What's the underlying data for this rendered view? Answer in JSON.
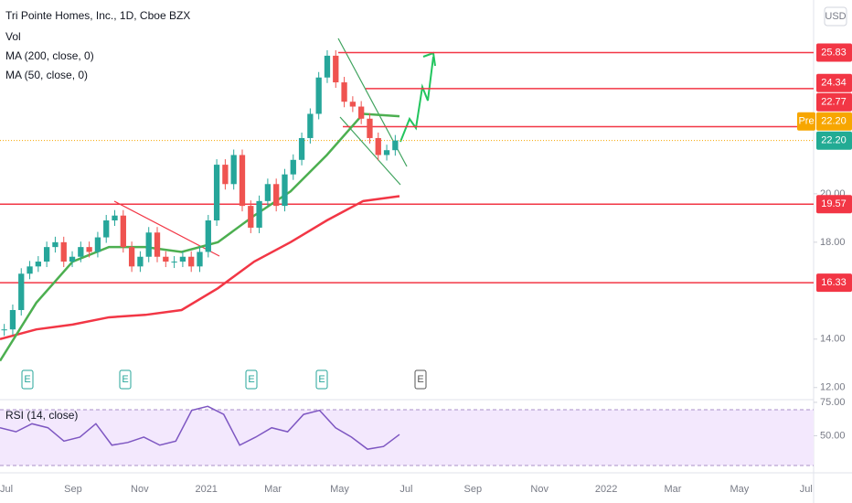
{
  "header": {
    "title": "Tri Pointe Homes, Inc., 1D, Cboe BZX",
    "currency": "USD"
  },
  "chart_data": [
    {
      "type": "candlestick",
      "volume_label": "Vol",
      "closes": [
        14.4,
        15.2,
        16.7,
        17.0,
        17.2,
        17.8,
        18.0,
        17.2,
        17.4,
        17.8,
        17.6,
        18.2,
        18.9,
        19.1,
        17.8,
        17.0,
        17.4,
        18.4,
        17.4,
        17.2,
        17.2,
        17.4,
        17.0,
        17.6,
        18.9,
        21.2,
        20.4,
        21.6,
        19.5,
        18.6,
        19.7,
        20.4,
        19.5,
        20.8,
        21.4,
        22.3,
        23.3,
        24.8,
        25.7,
        24.6,
        23.8,
        23.6,
        23.1,
        22.3,
        21.6,
        21.8,
        22.2
      ],
      "ma": [
        {
          "name": "MA (200, close, 0)",
          "color": "#f23645",
          "values": [
            14.0,
            14.4,
            14.6,
            14.9,
            15.0,
            15.2,
            16.1,
            17.2,
            18.0,
            18.9,
            19.7,
            19.9
          ]
        },
        {
          "name": "MA (50, close, 0)",
          "color": "#4caf50",
          "values": [
            13.1,
            15.5,
            17.2,
            17.8,
            17.8,
            17.6,
            18.0,
            19.1,
            20.1,
            21.6,
            23.3,
            23.2
          ]
        }
      ],
      "ylim": [
        11.5,
        28
      ],
      "yticks": [
        {
          "value": 12,
          "label": "12.00"
        },
        {
          "value": 14,
          "label": "14.00"
        },
        {
          "value": 18,
          "label": "18.00"
        },
        {
          "value": 20,
          "label": "20.00"
        }
      ],
      "levels": [
        25.83,
        24.34,
        22.77,
        19.57,
        16.33
      ],
      "pre": {
        "name": "Pre",
        "value": 22.2,
        "label": "22.20"
      },
      "last": {
        "value": 22.2,
        "label": "22.20"
      },
      "earnings": [
        "E",
        "E",
        "E",
        "E",
        "E"
      ],
      "x_labels": [
        "Jul",
        "Sep",
        "Nov",
        "2021",
        "Mar",
        "May",
        "Jul",
        "Sep",
        "Nov",
        "2022",
        "Mar",
        "May",
        "Jul"
      ]
    },
    {
      "type": "line",
      "name": "RSI (14, close)",
      "color": "#7e57c2",
      "values": [
        56,
        53,
        59,
        56,
        46,
        49,
        59,
        43,
        45,
        49,
        43,
        46,
        69,
        72,
        66,
        43,
        49,
        56,
        53,
        66,
        69,
        56,
        49,
        40,
        42,
        51
      ],
      "ylim": [
        23.7,
        77
      ],
      "yticks": [
        {
          "value": 75,
          "label": "75.00"
        },
        {
          "value": 50,
          "label": "50.00"
        }
      ]
    }
  ]
}
